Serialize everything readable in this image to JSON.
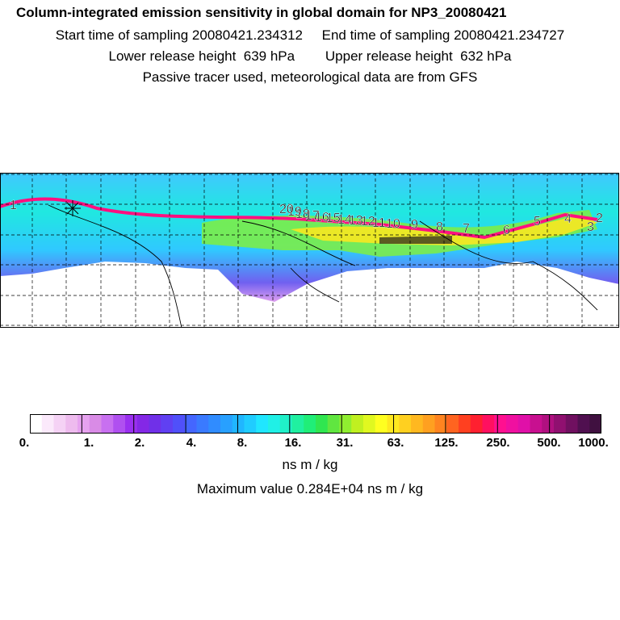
{
  "header": {
    "title": "Column-integrated emission sensitivity in global domain for NP3_20080421",
    "line1": "Start time of sampling 20080421.234312     End time of sampling 20080421.234727",
    "line2": "Lower release height  639 hPa        Upper release height  632 hPa",
    "line3": "Passive tracer used, meteorological data are from GFS"
  },
  "map": {
    "track_labels": [
      "1",
      "2",
      "3",
      "4",
      "5",
      "6",
      "7",
      "8",
      "9",
      "10",
      "11",
      "12",
      "13",
      "14",
      "15",
      "16",
      "17",
      "18",
      "19",
      "20"
    ]
  },
  "colorbar": {
    "colors": [
      "#ffffff",
      "#fbe9fb",
      "#f5d2f5",
      "#eebbee",
      "#e6a2ef",
      "#d98be6",
      "#c870f0",
      "#b050f0",
      "#9a30f0",
      "#8428e6",
      "#7030e8",
      "#6040f2",
      "#5050fa",
      "#4466ff",
      "#3a7aff",
      "#308cff",
      "#28a0ff",
      "#20b6ff",
      "#20ccff",
      "#20e6ff",
      "#20f0e6",
      "#20f0c8",
      "#20f0a0",
      "#20ee78",
      "#30e650",
      "#60e640",
      "#90ee30",
      "#c0f020",
      "#e0f820",
      "#ffff20",
      "#ffe820",
      "#ffd020",
      "#ffb820",
      "#ffa020",
      "#ff8420",
      "#ff6420",
      "#ff4020",
      "#ff2030",
      "#ff1060",
      "#ff1090",
      "#f010a0",
      "#e010a8",
      "#c81090",
      "#b01080",
      "#901070",
      "#701060",
      "#501050",
      "#401040"
    ],
    "tick_labels": [
      "0.",
      "1.",
      "2.",
      "4.",
      "8.",
      "16.",
      "31.",
      "63.",
      "125.",
      "250.",
      "500.",
      "1000."
    ],
    "units": "ns m / kg",
    "maximum": "Maximum value  0.284E+04 ns m / kg"
  }
}
